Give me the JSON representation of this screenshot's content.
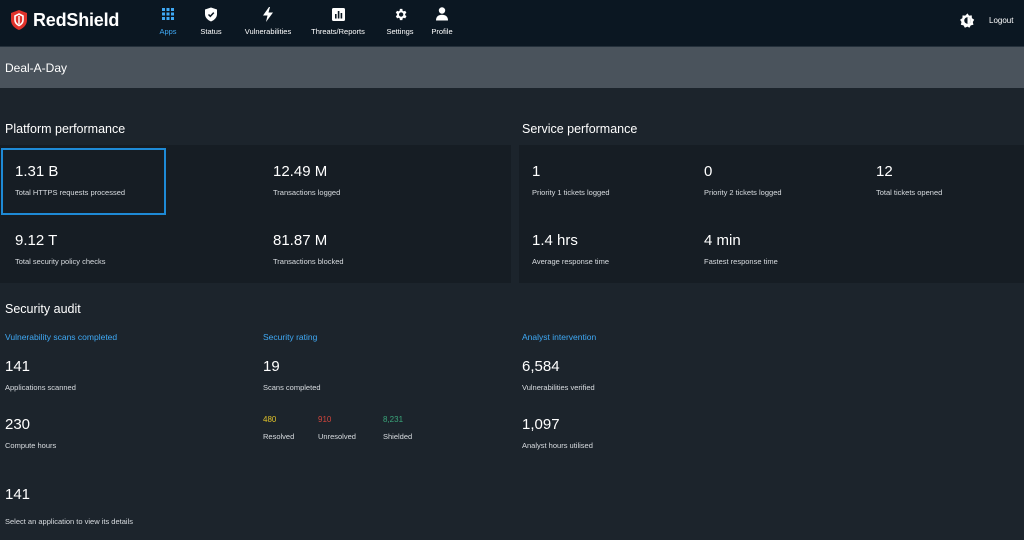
{
  "app": {
    "brand": "RedShield"
  },
  "nav": {
    "items": [
      {
        "id": "apps",
        "label": "Apps",
        "icon": "apps-grid-icon"
      },
      {
        "id": "status",
        "label": "Status",
        "icon": "shield-icon"
      },
      {
        "id": "vulnerabilities",
        "label": "Vulnerabilities",
        "icon": "lightning-icon"
      },
      {
        "id": "threats",
        "label": "Threats/Reports",
        "icon": "bar-chart-icon"
      },
      {
        "id": "settings",
        "label": "Settings",
        "icon": "gear-icon"
      },
      {
        "id": "profile",
        "label": "Profile",
        "icon": "user-icon"
      }
    ],
    "active": "apps",
    "logout": "Logout"
  },
  "page": {
    "title": "Deal-A-Day"
  },
  "platform": {
    "title": "Platform performance",
    "metrics": [
      {
        "value": "1.31 B",
        "caption": "Total HTTPS requests processed"
      },
      {
        "value": "12.49 M",
        "caption": "Transactions logged"
      },
      {
        "value": "9.12 T",
        "caption": "Total security policy checks"
      },
      {
        "value": "81.87 M",
        "caption": "Transactions blocked"
      }
    ]
  },
  "service": {
    "title": "Service performance",
    "metrics": [
      {
        "value": "1",
        "caption": "Priority 1 tickets logged"
      },
      {
        "value": "0",
        "caption": "Priority 2 tickets logged"
      },
      {
        "value": "12",
        "caption": "Total tickets opened"
      },
      {
        "value": "1.4 hrs",
        "caption": "Average response time"
      },
      {
        "value": "4 min",
        "caption": "Fastest response time"
      }
    ]
  },
  "audit": {
    "title": "Security audit",
    "scans": {
      "link": "Vulnerability scans completed",
      "apps_value": "141",
      "apps_caption": "Applications scanned",
      "hours_value": "230",
      "hours_caption": "Compute hours"
    },
    "rating": {
      "link": "Security rating",
      "scans_value": "19",
      "scans_caption": "Scans completed",
      "resolved_value": "480",
      "resolved_caption": "Resolved",
      "unresolved_value": "910",
      "unresolved_caption": "Unresolved",
      "shielded_value": "8,231",
      "shielded_caption": "Shielded"
    },
    "analyst": {
      "link": "Analyst intervention",
      "verified_value": "6,584",
      "verified_caption": "Vulnerabilities verified",
      "hours_value": "1,097",
      "hours_caption": "Analyst hours utilised"
    }
  },
  "footer": {
    "count": "141",
    "hint": "Select an application to view its details"
  },
  "colors": {
    "accent": "#3fa9f5",
    "resolved": "#e0c22a",
    "unresolved": "#d0453c",
    "shielded": "#3aa57a",
    "brand_red": "#e0322b"
  }
}
